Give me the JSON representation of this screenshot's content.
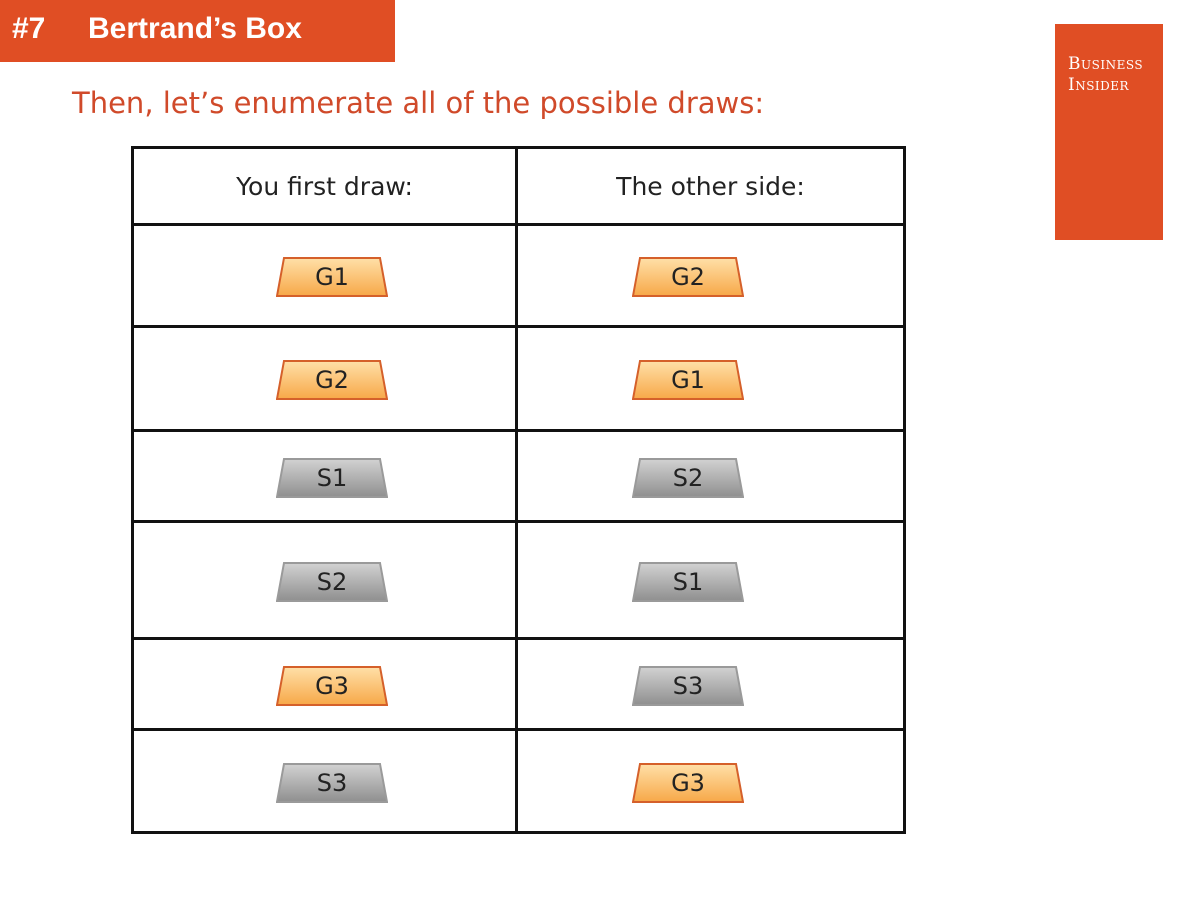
{
  "header": {
    "number": "#7",
    "title": "Bertrand’s Box"
  },
  "subtitle": "Then, let’s enumerate all of the possible draws:",
  "logo": {
    "line1": "Business",
    "line2": "Insider"
  },
  "table": {
    "columns": [
      "You first draw:",
      "The other side:"
    ],
    "rows": [
      {
        "first": "G1",
        "first_type": "gold",
        "second": "G2",
        "second_type": "gold"
      },
      {
        "first": "G2",
        "first_type": "gold",
        "second": "G1",
        "second_type": "gold"
      },
      {
        "first": "S1",
        "first_type": "silver",
        "second": "S2",
        "second_type": "silver"
      },
      {
        "first": "S2",
        "first_type": "silver",
        "second": "S1",
        "second_type": "silver"
      },
      {
        "first": "G3",
        "first_type": "gold",
        "second": "S3",
        "second_type": "silver"
      },
      {
        "first": "S3",
        "first_type": "silver",
        "second": "G3",
        "second_type": "gold"
      }
    ]
  },
  "colors": {
    "accent": "#e04e24",
    "gold_fill_top": "#ffe0a8",
    "gold_fill_bottom": "#f7a848",
    "gold_stroke": "#d5602a",
    "silver_fill_top": "#d2d2d2",
    "silver_fill_bottom": "#8f8f8f",
    "silver_stroke": "#9a9a9a"
  }
}
